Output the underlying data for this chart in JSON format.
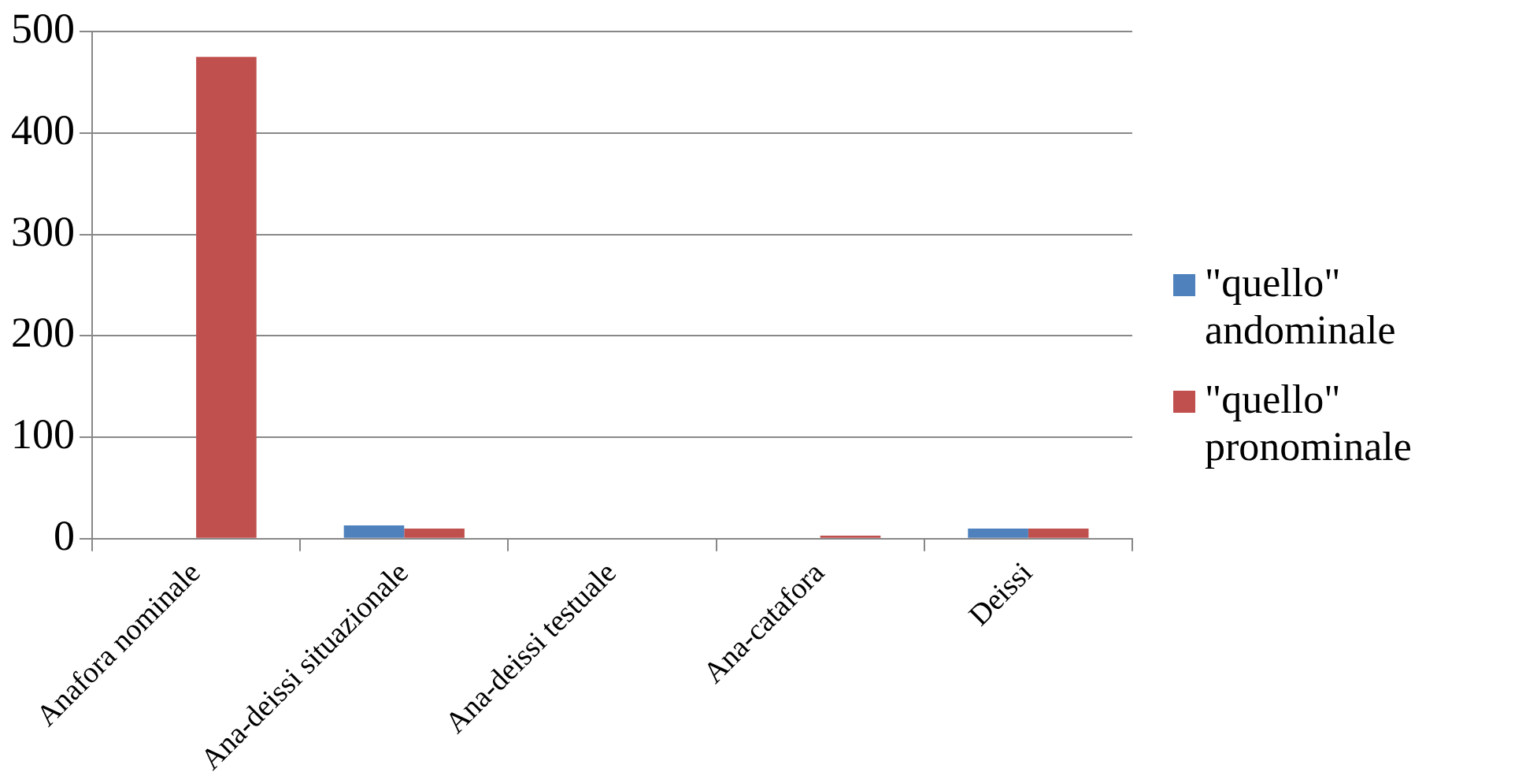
{
  "chart_data": {
    "type": "bar",
    "categories": [
      "Anafora nominale",
      "Ana-deissi situazionale",
      "Ana-deissi testuale",
      "Ana-catafora",
      "Deissi"
    ],
    "series": [
      {
        "name": "\"quello\" andominale",
        "color": "#4f81bd",
        "values": [
          0,
          13,
          0,
          0,
          10
        ]
      },
      {
        "name": "\"quello\" pronominale",
        "color": "#c0504d",
        "values": [
          475,
          10,
          0,
          3,
          10
        ]
      }
    ],
    "ylim": [
      0,
      500
    ],
    "yticks": [
      0,
      100,
      200,
      300,
      400,
      500
    ],
    "grid": "y",
    "legend": "right"
  }
}
